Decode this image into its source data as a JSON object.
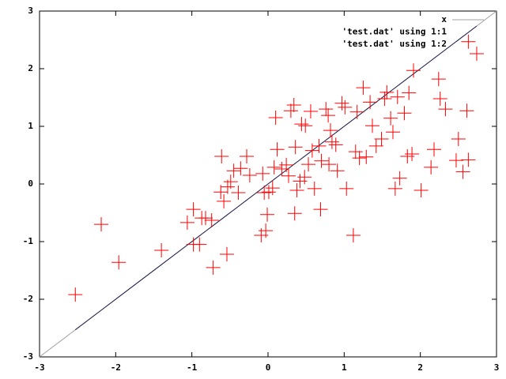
{
  "chart_data": {
    "type": "scatter",
    "xlim": [
      -3,
      3
    ],
    "ylim": [
      -3,
      3
    ],
    "xticks": [
      -3,
      -2,
      -1,
      0,
      1,
      2,
      3
    ],
    "yticks": [
      -3,
      -2,
      -1,
      0,
      1,
      2,
      3
    ],
    "legend": "top-right",
    "x": [
      -2.53,
      -2.19,
      -1.96,
      -1.4,
      -1.06,
      -0.98,
      -0.98,
      -0.9,
      -0.87,
      -0.82,
      -0.54,
      -0.72,
      -0.74,
      -0.61,
      -0.62,
      -0.58,
      -0.53,
      -0.49,
      -0.45,
      -0.39,
      -0.36,
      -0.28,
      -0.24,
      -0.07,
      -0.05,
      -0.09,
      -0.03,
      -0.01,
      0.01,
      0.06,
      0.08,
      0.1,
      0.12,
      0.18,
      0.24,
      0.27,
      0.3,
      0.34,
      0.36,
      0.35,
      0.38,
      0.42,
      0.44,
      0.48,
      0.49,
      0.53,
      0.58,
      0.56,
      0.61,
      0.67,
      0.69,
      0.7,
      0.76,
      0.79,
      0.8,
      0.82,
      0.84,
      0.89,
      0.91,
      0.97,
      1.01,
      1.03,
      1.12,
      1.15,
      1.17,
      1.2,
      1.25,
      1.29,
      1.34,
      1.37,
      1.42,
      1.49,
      1.53,
      1.56,
      1.61,
      1.64,
      1.67,
      1.7,
      1.73,
      1.79,
      1.83,
      1.85,
      1.89,
      1.91,
      2.01,
      2.18,
      2.14,
      2.24,
      2.26,
      2.33,
      2.5,
      2.56,
      2.61,
      2.63,
      2.63,
      2.74,
      2.47
    ],
    "series": [
      {
        "name": "x",
        "color": "#a0a0a0",
        "style": "line",
        "x": [
          -3,
          3
        ],
        "values": [
          -3,
          3
        ]
      },
      {
        "name": "'test.dat' using 1:1",
        "color": "#202050",
        "style": "line",
        "values": [
          -2.53,
          -2.19,
          -1.96,
          -1.4,
          -1.06,
          -0.98,
          -0.98,
          -0.9,
          -0.87,
          -0.82,
          -0.54,
          -0.72,
          -0.74,
          -0.61,
          -0.62,
          -0.58,
          -0.53,
          -0.49,
          -0.45,
          -0.39,
          -0.36,
          -0.28,
          -0.24,
          -0.07,
          -0.05,
          -0.09,
          -0.03,
          -0.01,
          0.01,
          0.06,
          0.08,
          0.1,
          0.12,
          0.18,
          0.24,
          0.27,
          0.3,
          0.34,
          0.36,
          0.35,
          0.38,
          0.42,
          0.44,
          0.48,
          0.49,
          0.53,
          0.58,
          0.56,
          0.61,
          0.67,
          0.69,
          0.7,
          0.76,
          0.79,
          0.8,
          0.82,
          0.84,
          0.89,
          0.91,
          0.97,
          1.01,
          1.03,
          1.12,
          1.15,
          1.17,
          1.2,
          1.25,
          1.29,
          1.34,
          1.37,
          1.42,
          1.49,
          1.53,
          1.56,
          1.61,
          1.64,
          1.67,
          1.7,
          1.73,
          1.79,
          1.83,
          1.85,
          1.89,
          1.91,
          2.01,
          2.18,
          2.14,
          2.24,
          2.26,
          2.33,
          2.5,
          2.56,
          2.61,
          2.63,
          2.63,
          2.74,
          2.47
        ]
      },
      {
        "name": "'test.dat' using 1:2",
        "color": "#ff0000",
        "style": "cross",
        "values": [
          -1.92,
          -0.7,
          -1.36,
          -1.15,
          -0.67,
          -0.44,
          -1.05,
          -1.05,
          -0.59,
          -0.59,
          -1.22,
          -1.45,
          -0.63,
          0.48,
          -0.14,
          -0.3,
          -0.05,
          0.04,
          0.23,
          -0.15,
          0.27,
          0.48,
          0.15,
          0.18,
          -0.15,
          -0.89,
          -0.81,
          -0.53,
          -0.14,
          -0.07,
          0.29,
          1.15,
          0.6,
          0.26,
          0.33,
          0.14,
          1.27,
          1.37,
          0.64,
          -0.51,
          -0.11,
          0.05,
          1.04,
          0.12,
          1.01,
          0.34,
          0.58,
          1.26,
          -0.08,
          0.66,
          -0.44,
          0.4,
          1.3,
          1.19,
          0.34,
          0.93,
          0.73,
          0.68,
          0.23,
          1.4,
          1.33,
          -0.08,
          -0.89,
          0.56,
          1.25,
          0.45,
          1.67,
          0.47,
          1.42,
          1.01,
          0.66,
          0.78,
          1.48,
          1.59,
          1.14,
          0.9,
          -0.08,
          1.51,
          0.1,
          1.23,
          0.48,
          1.58,
          0.52,
          1.97,
          -0.11,
          0.6,
          0.29,
          1.82,
          1.48,
          1.3,
          0.78,
          0.21,
          1.27,
          0.42,
          2.47,
          2.26,
          0.41
        ]
      }
    ]
  }
}
